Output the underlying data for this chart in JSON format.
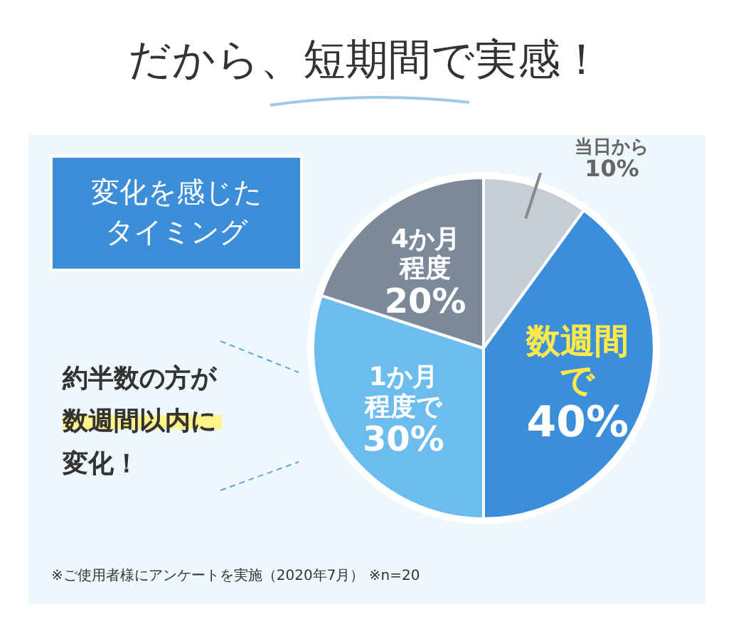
{
  "chart_data": {
    "type": "pie",
    "title": "だから、短期間で実感！",
    "subtitle": "変化を感じたタイミング",
    "categories": [
      "当日から",
      "数週間で",
      "1か月程度で",
      "4か月程度"
    ],
    "values": [
      10,
      40,
      30,
      20
    ],
    "value_labels": [
      "10%",
      "40%",
      "30%",
      "20%"
    ],
    "colors": [
      "#c6cdd4",
      "#3b8edb",
      "#6dbcef",
      "#7c8999"
    ],
    "annotations": [
      "約半数の方が数週間以内に変化！",
      "※ご使用者様にアンケートを実施（2020年7月） ※n=20"
    ]
  }
}
